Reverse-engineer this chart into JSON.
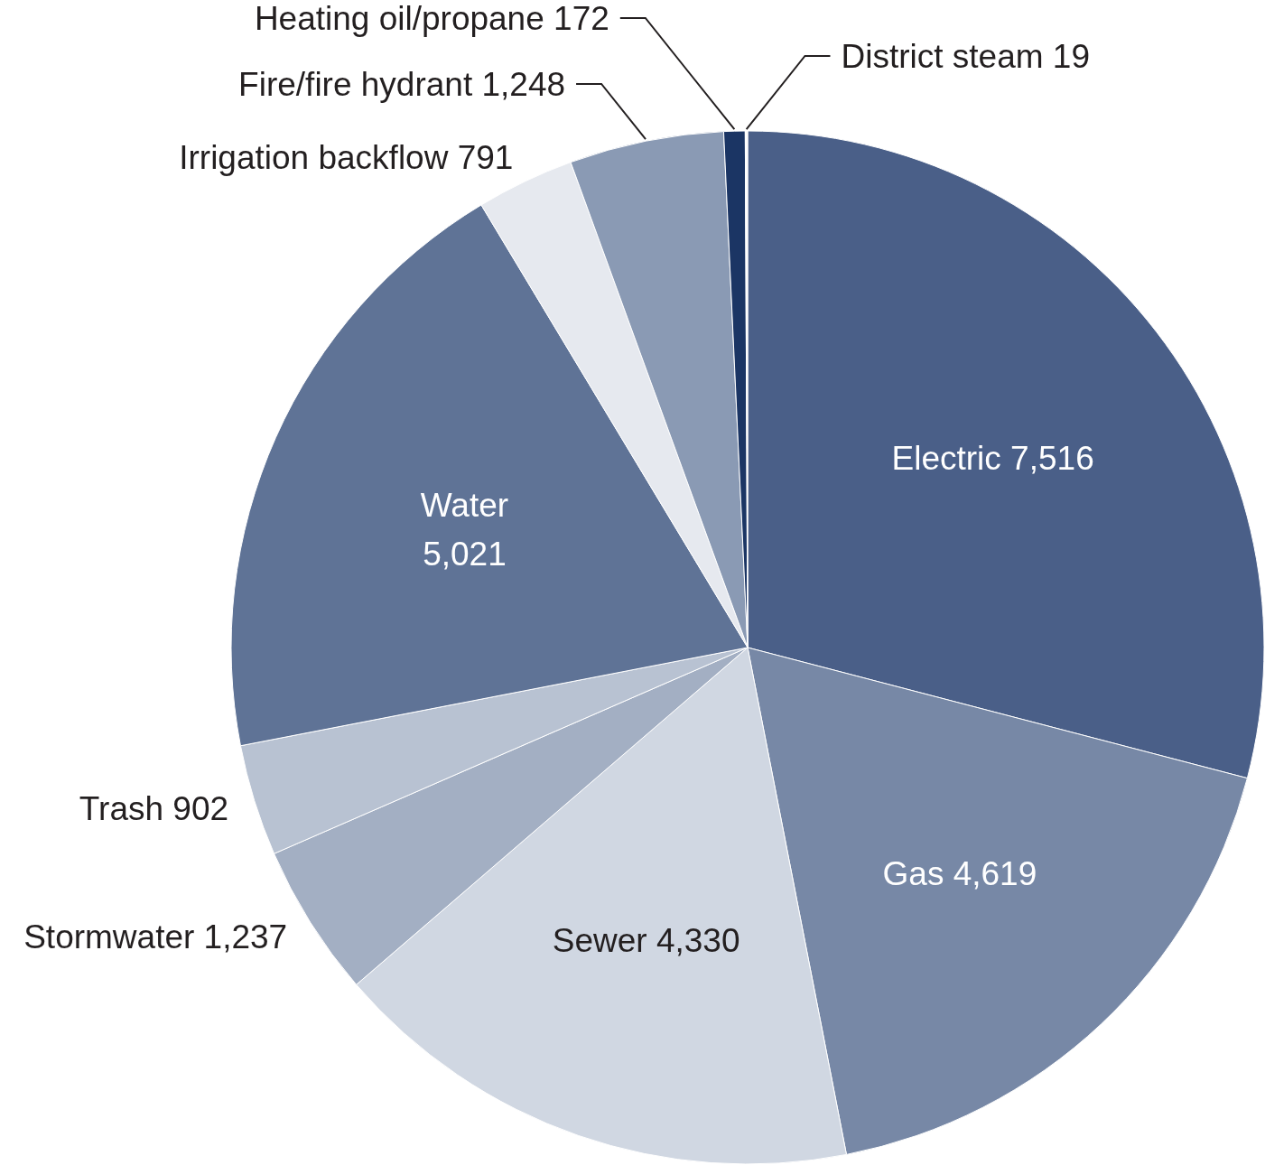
{
  "chart_data": {
    "type": "pie",
    "categories": [
      "Electric",
      "Gas",
      "Sewer",
      "Stormwater",
      "Trash",
      "Water",
      "Irrigation backflow",
      "Fire/fire hydrant",
      "Heating oil/propane",
      "District steam"
    ],
    "values": [
      7516,
      4619,
      4330,
      1237,
      902,
      5021,
      791,
      1248,
      172,
      19
    ],
    "colors": [
      "#4a5f88",
      "#7788a6",
      "#d0d7e2",
      "#a3afc3",
      "#b8c2d2",
      "#5f7396",
      "#e6e9ef",
      "#8a9ab4",
      "#1b3564",
      "#ffffff"
    ],
    "value_labels": [
      "7,516",
      "4,619",
      "4,330",
      "1,237",
      "902",
      "5,021",
      "791",
      "1,248",
      "172",
      "19"
    ]
  }
}
